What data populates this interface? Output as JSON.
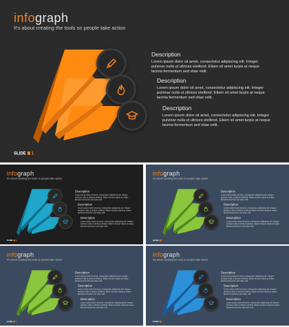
{
  "brand": {
    "title_a": "info",
    "title_b": "graph",
    "subtitle": "It's about creating the tools so people take action"
  },
  "slide_label": "SLIDE",
  "slide_number": "1",
  "items": [
    {
      "heading": "Description",
      "text": "Lorem ipsum dolor sit amet, consectetur adipiscing elit. Integer pulvinar nulla ut ultrices eleifend. Etiam sit amet turpis at neque lacinia fermentum sed vitae velit.",
      "icon": "pencil-icon"
    },
    {
      "heading": "Description",
      "text": "Lorem ipsum dolor sit amet, consectetur adipiscing elit. Integer pulvinar nulla ut ultrices eleifend. Etiam sit amet turpis at neque lacinia fermentum sed vitae velit.",
      "icon": "flame-icon"
    },
    {
      "heading": "Description",
      "text": "Lorem ipsum dolor sit amet, consectetur adipiscing elit. Integer pulvinar nulla ut ultrices eleifend. Etiam sit amet turpis at neque lacinia fermentum sed vitae velit.",
      "icon": "graduation-cap-icon"
    }
  ],
  "colors": {
    "accent": "#f5821f",
    "main_front": "#ff8a12",
    "main_side": "#b85a00",
    "teal_front": "#1fa6c9",
    "teal_side": "#0e6f8c",
    "green_front": "#8cc63f",
    "green_side": "#4e8a1c",
    "blue_front": "#2c8fd8",
    "blue_side": "#1a5a94"
  }
}
